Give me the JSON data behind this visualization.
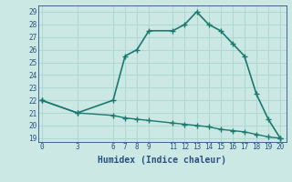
{
  "upper_x": [
    0,
    3,
    6,
    7,
    8,
    9,
    11,
    12,
    13,
    14,
    15,
    16,
    17,
    18,
    19,
    20
  ],
  "upper_y": [
    22,
    21,
    22,
    25.5,
    26,
    27.5,
    27.5,
    28,
    29,
    28,
    27.5,
    26.5,
    25.5,
    22.5,
    20.5,
    19
  ],
  "lower_x": [
    0,
    3,
    6,
    7,
    8,
    9,
    11,
    12,
    13,
    14,
    15,
    16,
    17,
    18,
    19,
    20
  ],
  "lower_y": [
    22,
    21,
    20.8,
    20.6,
    20.5,
    20.4,
    20.2,
    20.1,
    20.0,
    19.9,
    19.7,
    19.6,
    19.5,
    19.3,
    19.1,
    19.0
  ],
  "line_color": "#1a7a6e",
  "bg_color": "#cce8e4",
  "grid_color": "#aed8d2",
  "text_color": "#2a5080",
  "xlabel": "Humidex (Indice chaleur)",
  "xticks": [
    0,
    3,
    6,
    7,
    8,
    9,
    11,
    12,
    13,
    14,
    15,
    16,
    17,
    18,
    19,
    20
  ],
  "yticks": [
    19,
    20,
    21,
    22,
    23,
    24,
    25,
    26,
    27,
    28,
    29
  ],
  "ylim": [
    18.7,
    29.5
  ],
  "xlim": [
    -0.3,
    20.5
  ]
}
